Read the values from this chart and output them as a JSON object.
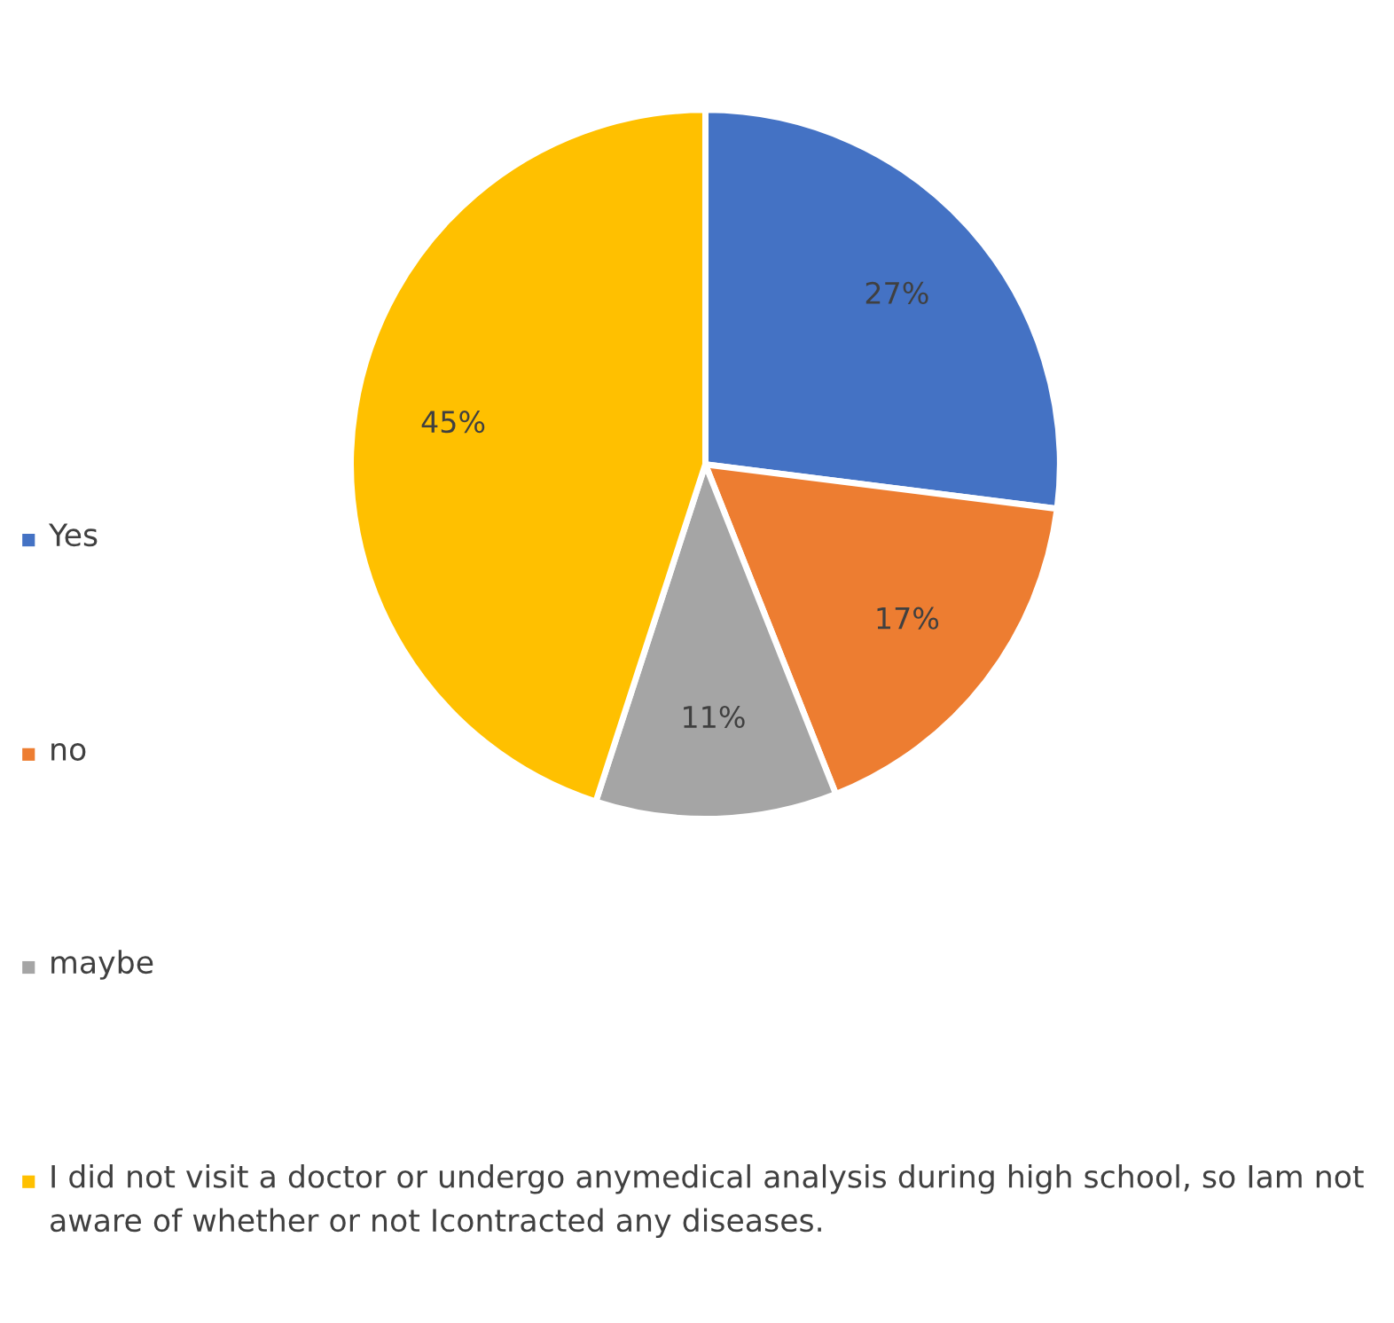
{
  "chart_data": {
    "type": "pie",
    "categories": [
      "Yes",
      "no",
      "maybe",
      "I did not visit a doctor or undergo anymedical analysis during high school, so Iam not aware of whether or not Icontracted any diseases."
    ],
    "values": [
      27,
      17,
      11,
      45
    ],
    "colors": [
      "#4472c4",
      "#ed7d31",
      "#a5a5a5",
      "#ffc000"
    ],
    "value_labels": [
      "27%",
      "17%",
      "11%",
      "45%"
    ],
    "legend": "left"
  }
}
